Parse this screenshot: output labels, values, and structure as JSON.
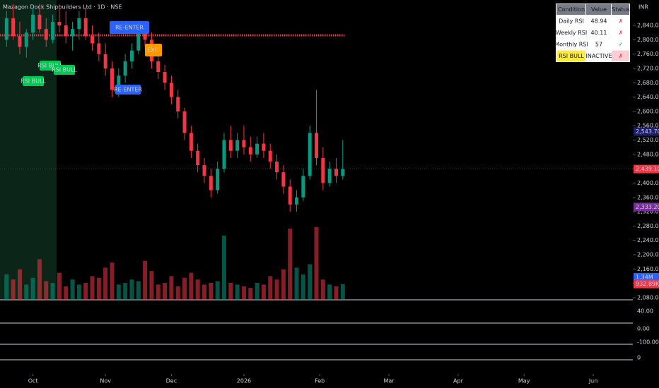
{
  "chart_data": {
    "type": "candlestick",
    "title": "Mazagon Dock Shipbuilders Ltd · 1D · NSE",
    "currency": "INR",
    "x": [
      2,
      4,
      6,
      8,
      10,
      12,
      14,
      16,
      18,
      20,
      22,
      24,
      26,
      28,
      30,
      32,
      34,
      36,
      38,
      40,
      42,
      44,
      46,
      48,
      50,
      52,
      54,
      56,
      58,
      60,
      62,
      64,
      66,
      68,
      70,
      72,
      74,
      76,
      78,
      80,
      82,
      84,
      86,
      88,
      90,
      92,
      94,
      96,
      98,
      100,
      102,
      104
    ],
    "open": [
      2800,
      2860,
      2810,
      2780,
      2820,
      2870,
      2830,
      2800,
      2850,
      2840,
      2810,
      2830,
      2860,
      2810,
      2790,
      2760,
      2720,
      2660,
      2700,
      2740,
      2770,
      2820,
      2800,
      2740,
      2710,
      2680,
      2640,
      2600,
      2540,
      2490,
      2450,
      2420,
      2380,
      2440,
      2520,
      2490,
      2520,
      2500,
      2480,
      2510,
      2490,
      2460,
      2430,
      2390,
      2340,
      2360,
      2420,
      2540,
      2470,
      2400,
      2440,
      2420
    ],
    "high": [
      2880,
      2900,
      2850,
      2830,
      2890,
      2900,
      2860,
      2870,
      2890,
      2880,
      2850,
      2880,
      2890,
      2840,
      2820,
      2790,
      2740,
      2720,
      2760,
      2790,
      2840,
      2850,
      2820,
      2760,
      2730,
      2700,
      2660,
      2610,
      2560,
      2510,
      2470,
      2440,
      2460,
      2540,
      2560,
      2540,
      2560,
      2530,
      2530,
      2540,
      2510,
      2480,
      2450,
      2410,
      2380,
      2440,
      2560,
      2660,
      2500,
      2460,
      2470,
      2520
    ],
    "low": [
      2780,
      2800,
      2760,
      2750,
      2800,
      2820,
      2780,
      2790,
      2820,
      2790,
      2770,
      2800,
      2800,
      2770,
      2740,
      2700,
      2640,
      2640,
      2680,
      2720,
      2760,
      2780,
      2720,
      2690,
      2660,
      2620,
      2580,
      2520,
      2470,
      2430,
      2400,
      2360,
      2370,
      2430,
      2470,
      2470,
      2480,
      2460,
      2470,
      2470,
      2440,
      2410,
      2370,
      2320,
      2320,
      2350,
      2410,
      2450,
      2380,
      2390,
      2400,
      2410
    ],
    "close": [
      2860,
      2810,
      2780,
      2820,
      2870,
      2830,
      2800,
      2850,
      2840,
      2810,
      2830,
      2860,
      2810,
      2790,
      2760,
      2720,
      2660,
      2700,
      2740,
      2770,
      2820,
      2800,
      2740,
      2710,
      2680,
      2640,
      2600,
      2540,
      2490,
      2450,
      2420,
      2380,
      2440,
      2520,
      2490,
      2520,
      2500,
      2480,
      2510,
      2490,
      2460,
      2430,
      2390,
      2340,
      2360,
      2420,
      2540,
      2470,
      2400,
      2440,
      2420,
      2439.1
    ],
    "volume": [
      1500000,
      1200000,
      1800000,
      900000,
      1300000,
      2400000,
      1100000,
      1000000,
      1600000,
      800000,
      1200000,
      900000,
      1000000,
      1400000,
      1300000,
      1900000,
      2200000,
      900000,
      1000000,
      1200000,
      1100000,
      2300000,
      1700000,
      900000,
      1000000,
      1400000,
      800000,
      1300000,
      1600000,
      1200000,
      900000,
      1000000,
      1100000,
      3800000,
      1000000,
      900000,
      800000,
      700000,
      1000000,
      900000,
      1400000,
      1200000,
      1800000,
      4200000,
      1900000,
      1500000,
      2100000,
      4300000,
      1200000,
      900000,
      800000,
      932890
    ],
    "up_color": "#089981",
    "down_color": "#f23645",
    "ylim": [
      2074,
      2911
    ],
    "xlim": [
      0,
      192
    ],
    "yticks": [
      {
        "value": 2080,
        "label": "2,080.00"
      },
      {
        "value": 2120,
        "label": "2,120.00"
      },
      {
        "value": 2160,
        "label": "2,160.00"
      },
      {
        "value": 2200,
        "label": "2,200.00"
      },
      {
        "value": 2240,
        "label": "2,240.00"
      },
      {
        "value": 2280,
        "label": "2,280.00"
      },
      {
        "value": 2320,
        "label": "2,320.00"
      },
      {
        "value": 2360,
        "label": "2,360.00"
      },
      {
        "value": 2400,
        "label": "2,400.00"
      },
      {
        "value": 2440,
        "label": "2,440.00"
      },
      {
        "value": 2480,
        "label": "2,480.00"
      },
      {
        "value": 2520,
        "label": "2,520.00"
      },
      {
        "value": 2560,
        "label": "2,560.00"
      },
      {
        "value": 2600,
        "label": "2,600.00"
      },
      {
        "value": 2640,
        "label": "2,640.00"
      },
      {
        "value": 2680,
        "label": "2,680.00"
      },
      {
        "value": 2720,
        "label": "2,720.00"
      },
      {
        "value": 2760,
        "label": "2,760.00"
      },
      {
        "value": 2800,
        "label": "2,800.00"
      },
      {
        "value": 2840,
        "label": "2,840.00"
      }
    ],
    "xticks": [
      {
        "value": 10,
        "label": "Oct"
      },
      {
        "value": 32,
        "label": "Nov"
      },
      {
        "value": 52,
        "label": "Dec"
      },
      {
        "value": 74,
        "label": "2026"
      },
      {
        "value": 97,
        "label": "Feb"
      },
      {
        "value": 118,
        "label": "Mar"
      },
      {
        "value": 139,
        "label": "Apr"
      },
      {
        "value": 159,
        "label": "May"
      },
      {
        "value": 180,
        "label": "Jun"
      }
    ],
    "price_labels": [
      {
        "value": 2543.7,
        "label": "2,543.70",
        "color": "#1e1e6e"
      },
      {
        "value": 2439.1,
        "label": "2,439.10",
        "color": "#f23645"
      },
      {
        "value": 2333.2,
        "label": "2,333.20",
        "color": "#7b2d9e"
      }
    ],
    "volume_labels": [
      {
        "value": 1340000,
        "label": "1.34M",
        "color": "#2962ff"
      },
      {
        "value": 932890,
        "label": "932.89K",
        "color": "#f23645"
      }
    ],
    "annotations": [
      {
        "text": "RE-ENTER",
        "color": "#2962ff"
      },
      {
        "text": "RE-ENTER",
        "color": "#2962ff"
      },
      {
        "text": "RSI BULL",
        "color": "#00c853"
      },
      {
        "text": "RSI BULL",
        "color": "#00c853"
      },
      {
        "text": "RSI BULL",
        "color": "#00c853"
      },
      {
        "text": "EXIT",
        "color": "#ff9800"
      }
    ],
    "indicator_labels": [
      "40.00",
      "0.00",
      "-100.00",
      "0"
    ]
  },
  "table": {
    "header": [
      "Condition",
      "Value",
      "Status"
    ],
    "rows": [
      [
        "Daily RSI",
        "48.94",
        "✗"
      ],
      [
        "Weekly RSI",
        "40.11",
        "✗"
      ],
      [
        "Monthly RSI",
        "57",
        "✓"
      ],
      [
        "RSI BULL",
        "INACTIVE",
        "✗"
      ]
    ]
  }
}
